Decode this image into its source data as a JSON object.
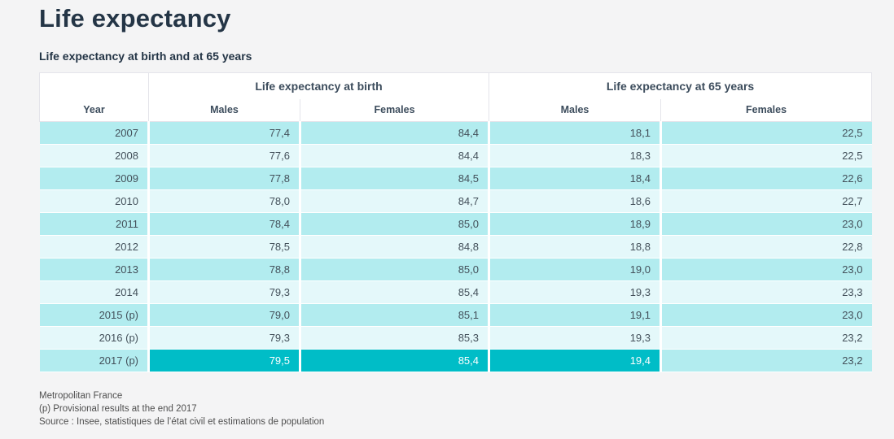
{
  "page": {
    "title": "Life expectancy",
    "subtitle": "Life expectancy at birth and at 65 years"
  },
  "table": {
    "group_headers": {
      "year_spacer": "",
      "birth": "Life expectancy at birth",
      "at65": "Life expectancy at 65 years"
    },
    "column_headers": [
      "Year",
      "Males",
      "Females",
      "Males",
      "Females"
    ],
    "rows": [
      {
        "year": "2007",
        "values": [
          "77,4",
          "84,4",
          "18,1",
          "22,5"
        ],
        "highlight_cols": []
      },
      {
        "year": "2008",
        "values": [
          "77,6",
          "84,4",
          "18,3",
          "22,5"
        ],
        "highlight_cols": []
      },
      {
        "year": "2009",
        "values": [
          "77,8",
          "84,5",
          "18,4",
          "22,6"
        ],
        "highlight_cols": []
      },
      {
        "year": "2010",
        "values": [
          "78,0",
          "84,7",
          "18,6",
          "22,7"
        ],
        "highlight_cols": []
      },
      {
        "year": "2011",
        "values": [
          "78,4",
          "85,0",
          "18,9",
          "23,0"
        ],
        "highlight_cols": []
      },
      {
        "year": "2012",
        "values": [
          "78,5",
          "84,8",
          "18,8",
          "22,8"
        ],
        "highlight_cols": []
      },
      {
        "year": "2013",
        "values": [
          "78,8",
          "85,0",
          "19,0",
          "23,0"
        ],
        "highlight_cols": []
      },
      {
        "year": "2014",
        "values": [
          "79,3",
          "85,4",
          "19,3",
          "23,3"
        ],
        "highlight_cols": []
      },
      {
        "year": "2015 (p)",
        "values": [
          "79,0",
          "85,1",
          "19,1",
          "23,0"
        ],
        "highlight_cols": []
      },
      {
        "year": "2016 (p)",
        "values": [
          "79,3",
          "85,3",
          "19,3",
          "23,2"
        ],
        "highlight_cols": []
      },
      {
        "year": "2017 (p)",
        "values": [
          "79,5",
          "85,4",
          "19,4",
          "23,2"
        ],
        "highlight_cols": [
          1,
          2,
          3
        ]
      }
    ]
  },
  "footnotes": [
    "Metropolitan France",
    "(p) Provisional results at the end 2017",
    "Source : Insee, statistiques de l’état civil et estimations de population"
  ],
  "colors": {
    "bg": "#f4f4f5",
    "title": "#243546",
    "headtext": "#3c4c5c",
    "celltext": "#43505a",
    "stripe-dark": "#b2ecef",
    "stripe-light": "#e4f8fa",
    "highlight": "#00bdc7",
    "headborder": "#e4e4ea",
    "foottext": "#4f4f4f"
  },
  "chart_data": {
    "type": "table",
    "title": "Life expectancy",
    "subtitle": "Life expectancy at birth and at 65 years",
    "categories": [
      "2007",
      "2008",
      "2009",
      "2010",
      "2011",
      "2012",
      "2013",
      "2014",
      "2015 (p)",
      "2016 (p)",
      "2017 (p)"
    ],
    "series": [
      {
        "name": "Life expectancy at birth - Males",
        "values": [
          77.4,
          77.6,
          77.8,
          78.0,
          78.4,
          78.5,
          78.8,
          79.3,
          79.0,
          79.3,
          79.5
        ]
      },
      {
        "name": "Life expectancy at birth - Females",
        "values": [
          84.4,
          84.4,
          84.5,
          84.7,
          85.0,
          84.8,
          85.0,
          85.4,
          85.1,
          85.3,
          85.4
        ]
      },
      {
        "name": "Life expectancy at 65 years - Males",
        "values": [
          18.1,
          18.3,
          18.4,
          18.6,
          18.9,
          18.8,
          19.0,
          19.3,
          19.1,
          19.3,
          19.4
        ]
      },
      {
        "name": "Life expectancy at 65 years - Females",
        "values": [
          22.5,
          22.5,
          22.6,
          22.7,
          23.0,
          22.8,
          23.0,
          23.3,
          23.0,
          23.2,
          23.2
        ]
      }
    ],
    "notes": [
      "Metropolitan France",
      "(p) Provisional results at the end 2017",
      "Source : Insee, statistiques de l’état civil et estimations de population"
    ]
  }
}
